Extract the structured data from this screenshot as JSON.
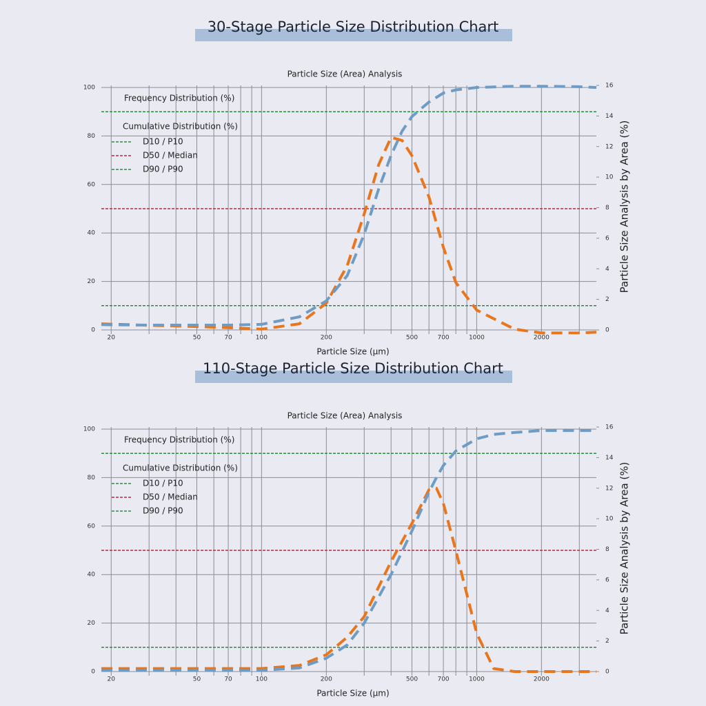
{
  "chart_data": [
    {
      "type": "line",
      "title": "30-Stage Particle Size Distribution Chart",
      "subtitle": "Particle Size (Area) Analysis",
      "x_label": "Particle Size (μm)",
      "y2_label": "Particle Size Analysis by Area (%)",
      "xscale": "log",
      "xlim": [
        18,
        3600
      ],
      "xticks": [
        20,
        50,
        70,
        100,
        200,
        500,
        700,
        1000,
        2000
      ],
      "xminorticks": [
        30,
        40,
        60,
        80,
        90,
        300,
        400,
        600,
        800,
        900,
        3000
      ],
      "ylim": [
        0,
        100
      ],
      "yticks": [
        0,
        20,
        40,
        60,
        80,
        100
      ],
      "y2lim": [
        0,
        16
      ],
      "y2ticks": [
        0,
        2,
        4,
        6,
        8,
        10,
        12,
        14,
        16
      ],
      "grid": true,
      "legend": "upper left",
      "x": [
        18,
        20,
        30,
        50,
        70,
        100,
        150,
        200,
        250,
        300,
        350,
        400,
        450,
        500,
        600,
        700,
        800,
        1000,
        1500,
        2000,
        3000,
        3600
      ],
      "series": [
        {
          "name": "Frequency Distribution (%)",
          "color": "#e8761e",
          "axis": "y2",
          "values": [
            0.4,
            0.38,
            0.3,
            0.22,
            0.15,
            0.05,
            0.4,
            1.75,
            4.2,
            7.6,
            10.8,
            12.6,
            12.4,
            11.4,
            8.7,
            5.4,
            3.1,
            1.3,
            0.05,
            -0.2,
            -0.2,
            -0.15
          ]
        },
        {
          "name": "Cumulative Distribution (%)",
          "color": "#6e9cc4",
          "values": [
            2.2,
            2.1,
            2,
            2,
            2,
            2.3,
            5.4,
            12,
            22.4,
            39.5,
            58,
            72,
            82,
            88,
            94,
            97.7,
            99,
            100,
            100.5,
            100.5,
            100.3,
            100
          ]
        }
      ],
      "reference_lines": [
        {
          "name": "D10 / P10",
          "value": 10,
          "color": "#2e8b3e"
        },
        {
          "name": "D50 / Median",
          "value": 50,
          "color": "#b8283a"
        },
        {
          "name": "D90 / P90",
          "value": 90,
          "color": "#2e8b3e"
        }
      ]
    },
    {
      "type": "line",
      "title": "110-Stage Particle Size Distribution Chart",
      "subtitle": "Particle Size (Area) Analysis",
      "x_label": "Particle Size (μm)",
      "y2_label": "Particle Size Analysis by Area (%)",
      "xscale": "log",
      "xlim": [
        18,
        3600
      ],
      "xticks": [
        20,
        50,
        70,
        100,
        200,
        500,
        700,
        1000,
        2000
      ],
      "xminorticks": [
        30,
        40,
        60,
        80,
        90,
        300,
        400,
        600,
        800,
        900,
        3000
      ],
      "ylim": [
        0,
        100
      ],
      "yticks": [
        0,
        20,
        40,
        60,
        80,
        100
      ],
      "y2lim": [
        0,
        16
      ],
      "y2ticks": [
        0,
        2,
        4,
        6,
        8,
        10,
        12,
        14,
        16
      ],
      "grid": true,
      "legend": "upper left",
      "x": [
        18,
        50,
        100,
        150,
        200,
        250,
        300,
        400,
        500,
        600,
        650,
        700,
        800,
        1000,
        1200,
        1500,
        2000,
        3600
      ],
      "series": [
        {
          "name": "Frequency Distribution (%)",
          "color": "#e8761e",
          "axis": "y2",
          "values": [
            0.2,
            0.2,
            0.2,
            0.4,
            1.1,
            2.25,
            3.6,
            7.2,
            9.7,
            11.9,
            12,
            11,
            7.9,
            2.5,
            0.2,
            0,
            0,
            0
          ]
        },
        {
          "name": "Cumulative Distribution (%)",
          "color": "#6e9cc4",
          "values": [
            0.5,
            0.5,
            0.5,
            1.5,
            5.5,
            11,
            20,
            40,
            58,
            74,
            80,
            85,
            91,
            96,
            97.8,
            98.6,
            99.4,
            99.4
          ]
        }
      ],
      "reference_lines": [
        {
          "name": "D10 / P10",
          "value": 10,
          "color": "#2e8b3e"
        },
        {
          "name": "D50 / Median",
          "value": 50,
          "color": "#b8283a"
        },
        {
          "name": "D90 / P90",
          "value": 90,
          "color": "#2e8b3e"
        }
      ]
    }
  ]
}
